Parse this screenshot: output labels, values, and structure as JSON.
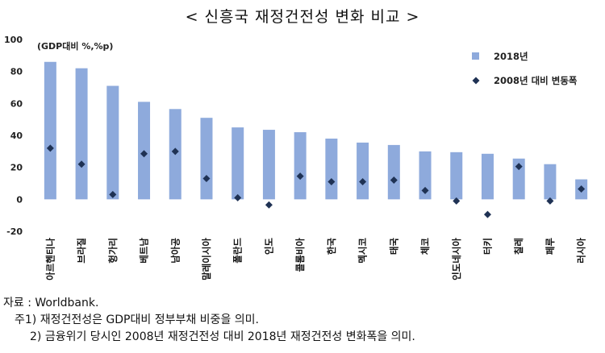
{
  "title": "< 신흥국 재정건전성 변화 비교 >",
  "chart_data": {
    "type": "bar",
    "unit_label": "(GDP대비 %,%p)",
    "categories": [
      "아르헨티나",
      "브라질",
      "헝가리",
      "베트남",
      "남아공",
      "말레이시아",
      "폴란드",
      "인도",
      "콜롬비아",
      "한국",
      "멕시코",
      "태국",
      "체코",
      "인도네시아",
      "터키",
      "칠레",
      "페루",
      "러시아"
    ],
    "series": [
      {
        "name": "2018년",
        "type": "bar",
        "color": "#8eaadc",
        "values": [
          86,
          82,
          71,
          61,
          56.5,
          51,
          45,
          43.5,
          42,
          38,
          35.5,
          34,
          30,
          29.5,
          28.5,
          25.5,
          22,
          12.5
        ]
      },
      {
        "name": "2008년 대비 변동폭",
        "type": "scatter",
        "marker": "diamond",
        "color": "#1f3254",
        "values": [
          32,
          22,
          3,
          28.5,
          30,
          13,
          1,
          -3.5,
          14.5,
          11,
          11,
          12,
          5.5,
          -1,
          -9.5,
          20.5,
          -1,
          6.5
        ]
      }
    ],
    "ylim": [
      -20,
      100
    ],
    "yticks": [
      -20,
      0,
      20,
      40,
      60,
      80,
      100
    ],
    "legend": "top-right",
    "grid": false
  },
  "notes": [
    "자료 : Worldbank.",
    "주1) 재정건전성은 GDP대비 정부부채 비중을 의미.",
    "2) 금융위기 당시인 2008년 재정건전성 대비 2018년 재정건전성 변화폭을 의미."
  ]
}
